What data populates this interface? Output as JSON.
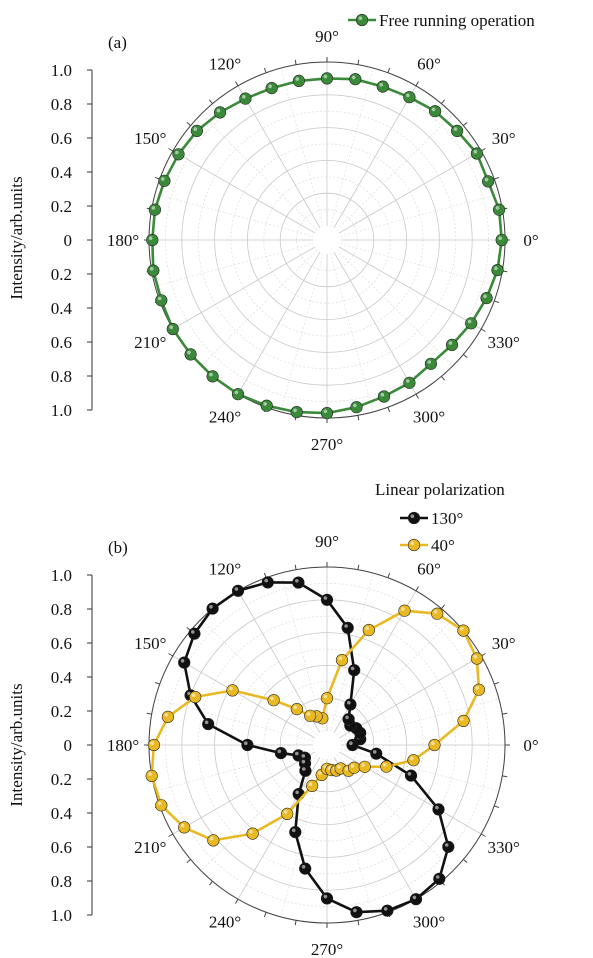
{
  "chart_data": [
    {
      "type": "polar",
      "panel_label": "(a)",
      "ylabel": "Intensity/arb.units",
      "r_ticks": [
        "1.0",
        "0.8",
        "0.6",
        "0.4",
        "0.2",
        "0",
        "0.2",
        "0.4",
        "0.6",
        "0.8",
        "1.0"
      ],
      "angle_ticks": [
        "0°",
        "30°",
        "60°",
        "90°",
        "120°",
        "150°",
        "180°",
        "210°",
        "240°",
        "270°",
        "300°",
        "330°"
      ],
      "rlim": [
        0,
        1.0
      ],
      "grid": true,
      "legend_position": "top-right",
      "series": [
        {
          "name": "Free running operation",
          "color": "#3a8a3a",
          "theta": [
            0,
            10,
            20,
            30,
            40,
            50,
            60,
            70,
            80,
            90,
            100,
            110,
            120,
            130,
            140,
            150,
            160,
            170,
            180,
            190,
            200,
            210,
            220,
            230,
            240,
            250,
            260,
            270,
            280,
            290,
            300,
            310,
            320,
            330,
            340,
            350
          ],
          "r": [
            0.98,
            0.98,
            0.96,
            0.97,
            0.95,
            0.94,
            0.92,
            0.91,
            0.91,
            0.9,
            0.9,
            0.9,
            0.91,
            0.93,
            0.95,
            0.96,
            0.97,
            0.98,
            0.98,
            0.99,
            0.99,
            1.0,
            1.0,
            1.0,
            1.0,
            0.99,
            0.98,
            0.97,
            0.95,
            0.93,
            0.92,
            0.9,
            0.91,
            0.93,
            0.95,
            0.97
          ]
        }
      ]
    },
    {
      "type": "polar",
      "panel_label": "(b)",
      "ylabel": "Intensity/arb.units",
      "r_ticks": [
        "1.0",
        "0.8",
        "0.6",
        "0.4",
        "0.2",
        "0",
        "0.2",
        "0.4",
        "0.6",
        "0.8",
        "1.0"
      ],
      "angle_ticks": [
        "0°",
        "30°",
        "60°",
        "90°",
        "120°",
        "150°",
        "180°",
        "210°",
        "240°",
        "270°",
        "300°",
        "330°"
      ],
      "rlim": [
        0,
        1.0
      ],
      "grid": true,
      "legend_title": "Linear polarization",
      "legend_position": "top-right",
      "series": [
        {
          "name": "130°",
          "color": "#111111",
          "theta": [
            0,
            10,
            20,
            30,
            40,
            50,
            60,
            70,
            80,
            90,
            100,
            110,
            120,
            130,
            140,
            150,
            160,
            170,
            180,
            190,
            200,
            210,
            220,
            230,
            240,
            250,
            260,
            270,
            280,
            290,
            300,
            310,
            320,
            330,
            340,
            350
          ],
          "r": [
            0.07,
            0.12,
            0.13,
            0.12,
            0.1,
            0.12,
            0.2,
            0.4,
            0.64,
            0.8,
            0.92,
            0.97,
            1.0,
            1.0,
            0.97,
            0.92,
            0.8,
            0.65,
            0.4,
            0.2,
            0.1,
            0.07,
            0.09,
            0.12,
            0.26,
            0.48,
            0.68,
            0.85,
            0.95,
            0.99,
            1.0,
            0.98,
            0.88,
            0.7,
            0.46,
            0.22
          ]
        },
        {
          "name": "40°",
          "color": "#e8b923",
          "theta": [
            0,
            10,
            20,
            30,
            40,
            50,
            60,
            70,
            80,
            90,
            100,
            110,
            120,
            130,
            140,
            150,
            160,
            170,
            180,
            190,
            200,
            210,
            220,
            230,
            240,
            250,
            260,
            270,
            280,
            290,
            300,
            310,
            320,
            330,
            340,
            350
          ],
          "r": [
            0.57,
            0.76,
            0.9,
            0.97,
            1.0,
            0.96,
            0.86,
            0.66,
            0.44,
            0.2,
            0.08,
            0.1,
            0.12,
            0.2,
            0.34,
            0.58,
            0.77,
            0.9,
            0.97,
            1.0,
            0.99,
            0.92,
            0.82,
            0.62,
            0.4,
            0.18,
            0.1,
            0.06,
            0.07,
            0.08,
            0.08,
            0.12,
            0.13,
            0.18,
            0.3,
            0.45
          ]
        }
      ]
    }
  ]
}
